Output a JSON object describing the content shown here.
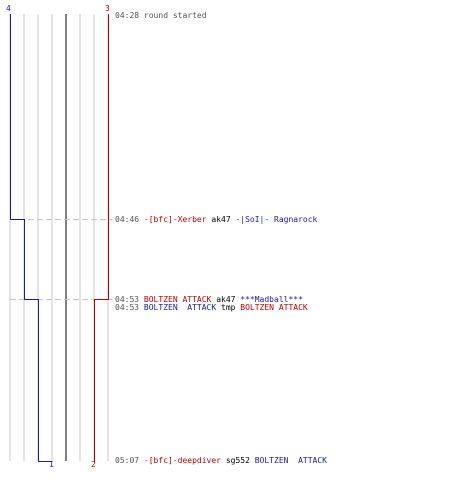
{
  "teams": {
    "blue": {
      "color": "#1a1aa6",
      "start_count": "4",
      "end_count": "1"
    },
    "red": {
      "color": "#c00000",
      "start_count": "3",
      "end_count": "2"
    }
  },
  "events": [
    {
      "time": "04:28",
      "text": "round started",
      "type": "info"
    },
    {
      "time": "04:46",
      "killer": "-[bfc]-Xerber",
      "killer_team": "red",
      "weapon": "ak47",
      "victim": "-|SoI|- Ragnarock",
      "victim_team": "blue"
    },
    {
      "time": "04:53",
      "killer": "BOLTZEN ATTACK",
      "killer_team": "red",
      "weapon": "ak47",
      "victim": "***Madball***",
      "victim_team": "blue"
    },
    {
      "time": "04:53",
      "killer": "BOLTZEN  ATTACK",
      "killer_team": "blue",
      "weapon": "tmp",
      "victim": "BOLTZEN ATTACK",
      "victim_team": "red"
    },
    {
      "time": "05:07",
      "killer": "-[bfc]-deepdiver",
      "killer_team": "red",
      "weapon": "sg552",
      "victim": "BOLTZEN  ATTACK",
      "victim_team": "blue"
    }
  ]
}
